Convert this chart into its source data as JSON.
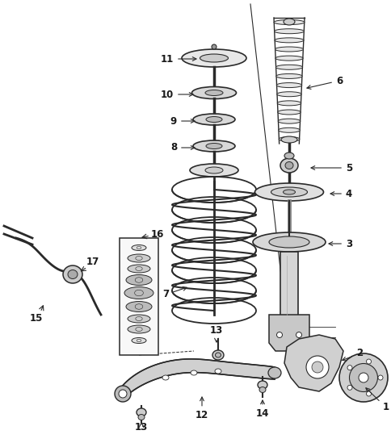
{
  "bg_color": "#ffffff",
  "line_color": "#2a2a2a",
  "label_color": "#1a1a1a",
  "figsize": [
    4.85,
    5.49
  ],
  "dpi": 100,
  "xlim": [
    0,
    485
  ],
  "ylim": [
    0,
    549
  ]
}
